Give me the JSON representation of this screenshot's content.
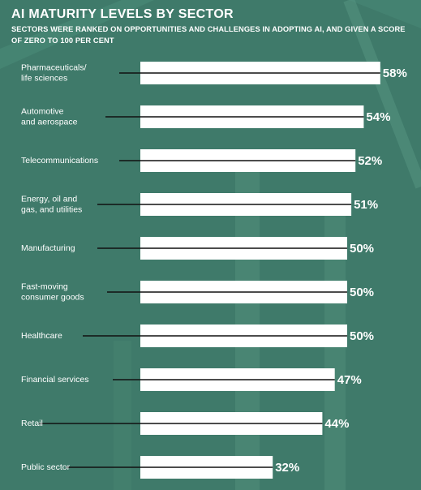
{
  "chart_data": {
    "type": "bar",
    "orientation": "horizontal",
    "title": "AI MATURITY LEVELS BY SECTOR",
    "subtitle": "SECTORS WERE RANKED ON OPPORTUNITIES AND CHALLENGES IN ADOPTING AI, AND GIVEN A SCORE OF ZERO TO 100 PER CENT",
    "categories": [
      [
        "Pharmaceuticals/",
        "life sciences"
      ],
      [
        "Automotive",
        "and aerospace"
      ],
      [
        "Telecommunications"
      ],
      [
        "Energy, oil and",
        "gas, and utilities"
      ],
      [
        "Manufacturing"
      ],
      [
        "Fast-moving",
        "consumer goods"
      ],
      [
        "Healthcare"
      ],
      [
        "Financial services"
      ],
      [
        "Retail"
      ],
      [
        "Public sector"
      ]
    ],
    "values": [
      58,
      54,
      52,
      51,
      50,
      50,
      50,
      47,
      44,
      32
    ],
    "value_labels": [
      "58%",
      "54%",
      "52%",
      "51%",
      "50%",
      "50%",
      "50%",
      "47%",
      "44%",
      "32%"
    ],
    "xlim": [
      0,
      100
    ],
    "grid": false,
    "colors": {
      "background": "#3f7a6a",
      "bar": "#ffffff",
      "line": "#111111",
      "text": "#ffffff"
    }
  }
}
